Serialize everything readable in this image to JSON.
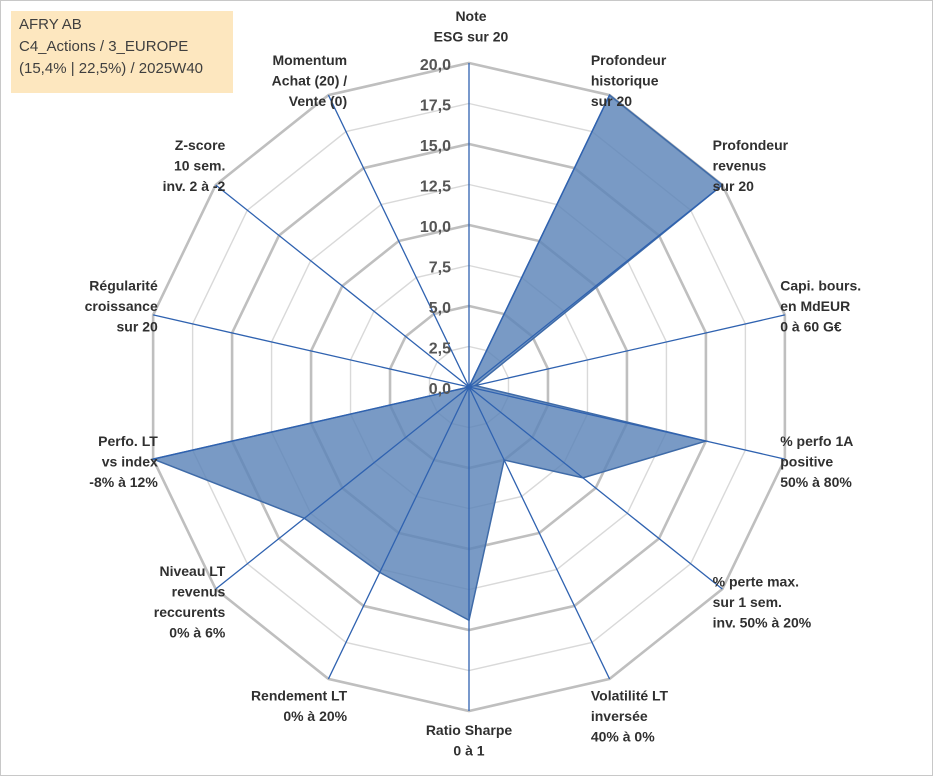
{
  "info": {
    "line1": "AFRY AB",
    "line2": "C4_Actions / 3_EUROPE",
    "line3": "(15,4% | 22,5%) / 2025W40"
  },
  "colors": {
    "fill": "#5b84b8",
    "stroke": "#3f6ba8",
    "axis": "#2f62b0",
    "grid_major": "#bfbfbf",
    "grid_minor": "#d9d9d9",
    "info_bg": "#fde7bf"
  },
  "chart_data": {
    "type": "radar",
    "title": "",
    "range": [
      0,
      20
    ],
    "tick_step": 2.5,
    "tick_labels": [
      "0,0",
      "2,5",
      "5,0",
      "7,5",
      "10,0",
      "12,5",
      "15,0",
      "17,5",
      "20,0"
    ],
    "categories": [
      [
        "Note",
        "ESG sur 20"
      ],
      [
        "Profondeur",
        "historique",
        "sur 20"
      ],
      [
        "Profondeur",
        "revenus",
        "sur 20"
      ],
      [
        "Capi. bours.",
        "en MdEUR",
        "0 à 60 G€"
      ],
      [
        "% perfo 1A",
        "positive",
        "50% à 80%"
      ],
      [
        "% perte max.",
        "sur 1 sem.",
        "inv. 50% à 20%"
      ],
      [
        "Volatilité LT",
        "inversée",
        "40% à 0%"
      ],
      [
        "Ratio Sharpe",
        "0 à 1"
      ],
      [
        "Rendement LT",
        "0% à 20%"
      ],
      [
        "Niveau LT",
        "revenus",
        "reccurents",
        "0% à 6%"
      ],
      [
        "Perfo. LT",
        "vs index",
        "-8% à 12%"
      ],
      [
        "Régularité",
        "croissance",
        "sur 20"
      ],
      [
        "Z-score",
        "10 sem.",
        "inv. 2 à -2"
      ],
      [
        "Momentum",
        "Achat (20) /",
        "Vente (0)"
      ]
    ],
    "series": [
      {
        "values": [
          0,
          20,
          20,
          0.4,
          15,
          9,
          5,
          14.4,
          12.7,
          13,
          20,
          0,
          0,
          0
        ]
      }
    ],
    "grid": true,
    "legend": "none"
  }
}
